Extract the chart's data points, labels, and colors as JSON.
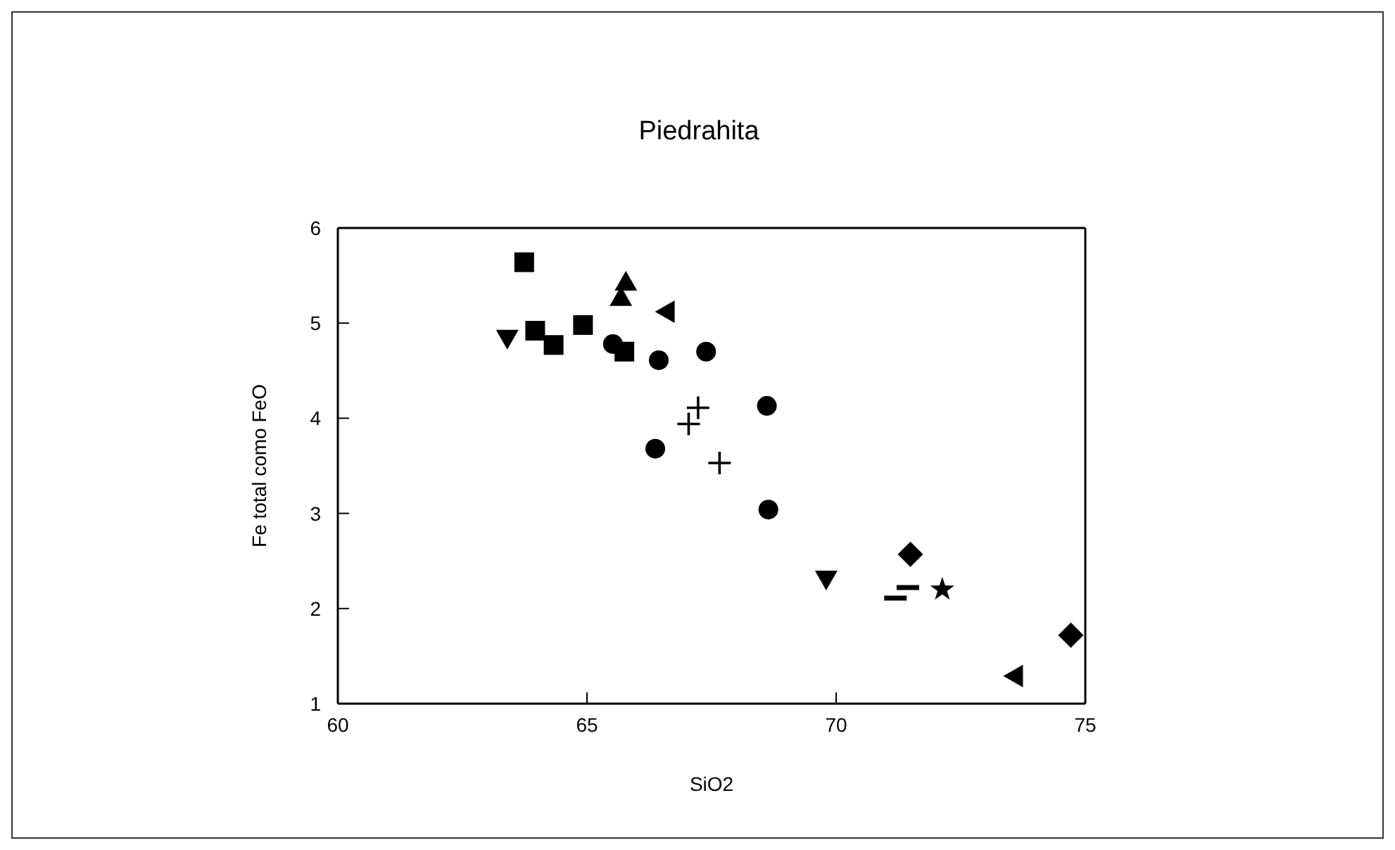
{
  "chart_data": {
    "type": "scatter",
    "title": "Piedrahita",
    "xlabel": "SiO2",
    "ylabel": "Fe total como FeO",
    "xlim": [
      60,
      75
    ],
    "xticks": [
      60,
      65,
      70,
      75
    ],
    "ylim": [
      1,
      6
    ],
    "yticks": [
      1,
      2,
      3,
      4,
      5,
      6
    ],
    "grid": false,
    "legend": false,
    "series": [
      {
        "color": "#000000",
        "marker": "square",
        "x": [
          63.74,
          63.96,
          64.33,
          64.92,
          65.75
        ],
        "values": [
          5.64,
          4.92,
          4.77,
          4.98,
          4.7
        ]
      },
      {
        "color": "#000000",
        "marker": "triangle",
        "x": [
          65.78,
          65.68
        ],
        "values": [
          5.43,
          5.27
        ]
      },
      {
        "color": "#000000",
        "marker": "triangle-down",
        "x": [
          63.4,
          69.8
        ],
        "values": [
          4.84,
          2.31
        ]
      },
      {
        "color": "#000000",
        "marker": "triangle-left",
        "x": [
          66.59,
          73.58
        ],
        "values": [
          5.12,
          1.29
        ]
      },
      {
        "color": "#000000",
        "marker": "circle",
        "x": [
          65.52,
          66.44,
          67.39,
          66.37,
          68.61
        ],
        "values": [
          4.78,
          4.61,
          4.7,
          3.68,
          4.13
        ]
      },
      {
        "color": "#000000",
        "marker": "cross",
        "x": [
          67.23,
          67.04,
          67.66
        ],
        "values": [
          4.11,
          3.94,
          3.53
        ]
      },
      {
        "color": "#000000",
        "marker": "circle",
        "x": [
          68.64
        ],
        "values": [
          3.04
        ]
      },
      {
        "color": "#000000",
        "marker": "diamond",
        "x": [
          71.49,
          74.71
        ],
        "values": [
          2.57,
          1.72
        ]
      },
      {
        "color": "#000000",
        "marker": "star",
        "x": [
          72.13
        ],
        "values": [
          2.2
        ]
      },
      {
        "color": "#000000",
        "x": [
          71.44,
          71.19
        ],
        "values": [
          2.22,
          2.11
        ]
      }
    ]
  }
}
